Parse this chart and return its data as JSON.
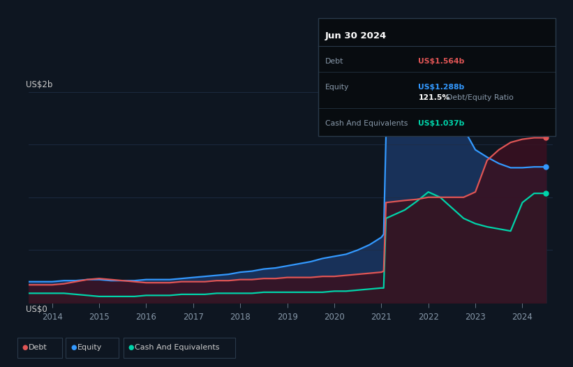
{
  "bg_color": "#0e1621",
  "plot_bg_color": "#0e1621",
  "grid_color": "#1e2d45",
  "years": [
    2013.5,
    2014.0,
    2014.25,
    2014.5,
    2014.75,
    2015.0,
    2015.25,
    2015.5,
    2015.75,
    2016.0,
    2016.25,
    2016.5,
    2016.75,
    2017.0,
    2017.25,
    2017.5,
    2017.75,
    2018.0,
    2018.25,
    2018.5,
    2018.75,
    2019.0,
    2019.25,
    2019.5,
    2019.75,
    2020.0,
    2020.25,
    2020.5,
    2020.75,
    2021.0,
    2021.05,
    2021.1,
    2021.5,
    2021.75,
    2022.0,
    2022.25,
    2022.5,
    2022.75,
    2023.0,
    2023.25,
    2023.5,
    2023.75,
    2024.0,
    2024.25,
    2024.5
  ],
  "debt": [
    0.17,
    0.17,
    0.18,
    0.2,
    0.22,
    0.23,
    0.22,
    0.21,
    0.2,
    0.19,
    0.19,
    0.19,
    0.2,
    0.2,
    0.2,
    0.21,
    0.21,
    0.22,
    0.22,
    0.23,
    0.23,
    0.24,
    0.24,
    0.24,
    0.25,
    0.25,
    0.26,
    0.27,
    0.28,
    0.29,
    0.3,
    0.95,
    0.97,
    0.98,
    1.0,
    1.0,
    1.0,
    1.0,
    1.05,
    1.35,
    1.45,
    1.52,
    1.55,
    1.564,
    1.564
  ],
  "equity": [
    0.2,
    0.2,
    0.21,
    0.21,
    0.22,
    0.22,
    0.21,
    0.21,
    0.21,
    0.22,
    0.22,
    0.22,
    0.23,
    0.24,
    0.25,
    0.26,
    0.27,
    0.29,
    0.3,
    0.32,
    0.33,
    0.35,
    0.37,
    0.39,
    0.42,
    0.44,
    0.46,
    0.5,
    0.55,
    0.62,
    0.65,
    1.6,
    1.7,
    1.78,
    1.85,
    1.9,
    1.82,
    1.65,
    1.45,
    1.38,
    1.32,
    1.28,
    1.28,
    1.288,
    1.288
  ],
  "cash": [
    0.09,
    0.09,
    0.09,
    0.08,
    0.07,
    0.06,
    0.06,
    0.06,
    0.06,
    0.07,
    0.07,
    0.07,
    0.08,
    0.08,
    0.08,
    0.09,
    0.09,
    0.09,
    0.09,
    0.1,
    0.1,
    0.1,
    0.1,
    0.1,
    0.1,
    0.11,
    0.11,
    0.12,
    0.13,
    0.14,
    0.14,
    0.8,
    0.88,
    0.96,
    1.05,
    1.0,
    0.9,
    0.8,
    0.75,
    0.72,
    0.7,
    0.68,
    0.95,
    1.037,
    1.037
  ],
  "debt_color": "#e05555",
  "equity_color": "#3399ff",
  "cash_color": "#00d4aa",
  "ylabel": "US$2b",
  "y0label": "US$0",
  "x_ticks": [
    2014,
    2015,
    2016,
    2017,
    2018,
    2019,
    2020,
    2021,
    2022,
    2023,
    2024
  ],
  "ylim": [
    0,
    2.0
  ],
  "xlim": [
    2013.5,
    2024.65
  ],
  "tooltip_date": "Jun 30 2024",
  "tooltip_debt_label": "Debt",
  "tooltip_debt_val": "US$1.564b",
  "tooltip_equity_label": "Equity",
  "tooltip_equity_val": "US$1.288b",
  "tooltip_ratio": "121.5%",
  "tooltip_ratio_label": "Debt/Equity Ratio",
  "tooltip_cash_label": "Cash And Equivalents",
  "tooltip_cash_val": "US$1.037b",
  "legend_labels": [
    "Debt",
    "Equity",
    "Cash And Equivalents"
  ]
}
